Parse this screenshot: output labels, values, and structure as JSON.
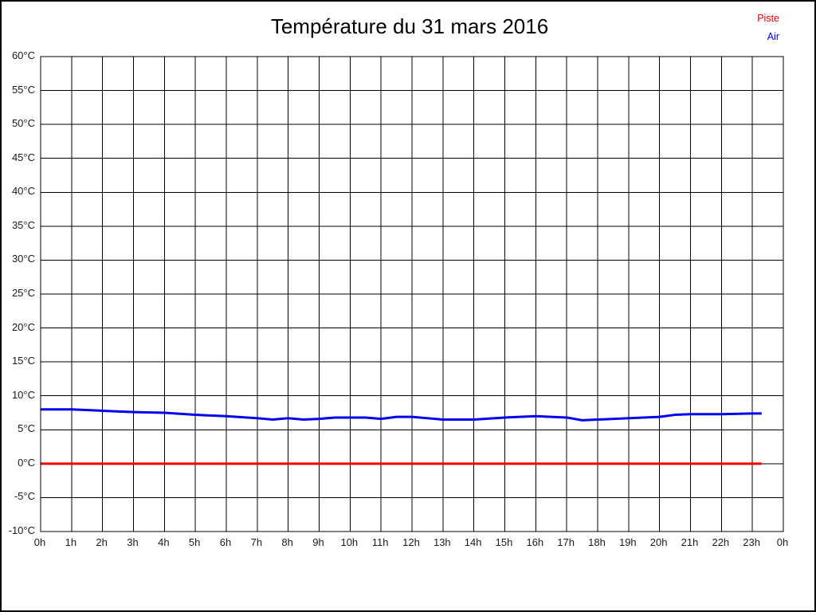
{
  "title": "Température du 31 mars 2016",
  "legend": {
    "items": [
      {
        "label": "Piste",
        "color": "#ee0000"
      },
      {
        "label": "Air",
        "color": "#0000ee"
      }
    ]
  },
  "chart_data": {
    "type": "line",
    "title": "Température du 31 mars 2016",
    "xlabel": "",
    "ylabel": "",
    "xlim": [
      0,
      24
    ],
    "ylim": [
      -10,
      60
    ],
    "grid": true,
    "legend_position": "top-right",
    "x_tick_values": [
      0,
      1,
      2,
      3,
      4,
      5,
      6,
      7,
      8,
      9,
      10,
      11,
      12,
      13,
      14,
      15,
      16,
      17,
      18,
      19,
      20,
      21,
      22,
      23,
      24
    ],
    "x_tick_labels": [
      "0h",
      "1h",
      "2h",
      "3h",
      "4h",
      "5h",
      "6h",
      "7h",
      "8h",
      "9h",
      "10h",
      "11h",
      "12h",
      "13h",
      "14h",
      "15h",
      "16h",
      "17h",
      "18h",
      "19h",
      "20h",
      "21h",
      "22h",
      "23h",
      "0h"
    ],
    "y_tick_values": [
      60,
      55,
      50,
      45,
      40,
      35,
      30,
      25,
      20,
      15,
      10,
      5,
      0,
      -5,
      -10
    ],
    "y_tick_labels": [
      "60°C",
      "55°C",
      "50°C",
      "45°C",
      "40°C",
      "35°C",
      "30°C",
      "25°C",
      "20°C",
      "15°C",
      "10°C",
      "5°C",
      "0°C",
      "-5°C",
      "-10°C"
    ],
    "series": [
      {
        "name": "Piste",
        "color": "#ee0000",
        "x": [
          0,
          23.3
        ],
        "values": [
          0.0,
          0.0
        ]
      },
      {
        "name": "Air",
        "color": "#0000ee",
        "x": [
          0,
          1,
          2,
          3,
          4,
          5,
          6,
          7,
          7.5,
          8,
          8.5,
          9,
          9.5,
          10,
          10.5,
          11,
          11.5,
          12,
          12.5,
          13,
          14,
          15,
          16,
          16.5,
          17,
          17.5,
          18,
          19,
          20,
          20.5,
          21,
          22,
          23,
          23.3
        ],
        "values": [
          8.0,
          8.0,
          7.8,
          7.6,
          7.5,
          7.2,
          7.0,
          6.7,
          6.5,
          6.7,
          6.5,
          6.6,
          6.8,
          6.8,
          6.8,
          6.6,
          6.9,
          6.9,
          6.7,
          6.5,
          6.5,
          6.8,
          7.0,
          6.9,
          6.8,
          6.4,
          6.5,
          6.7,
          6.9,
          7.2,
          7.3,
          7.3,
          7.4,
          7.4
        ]
      }
    ]
  }
}
